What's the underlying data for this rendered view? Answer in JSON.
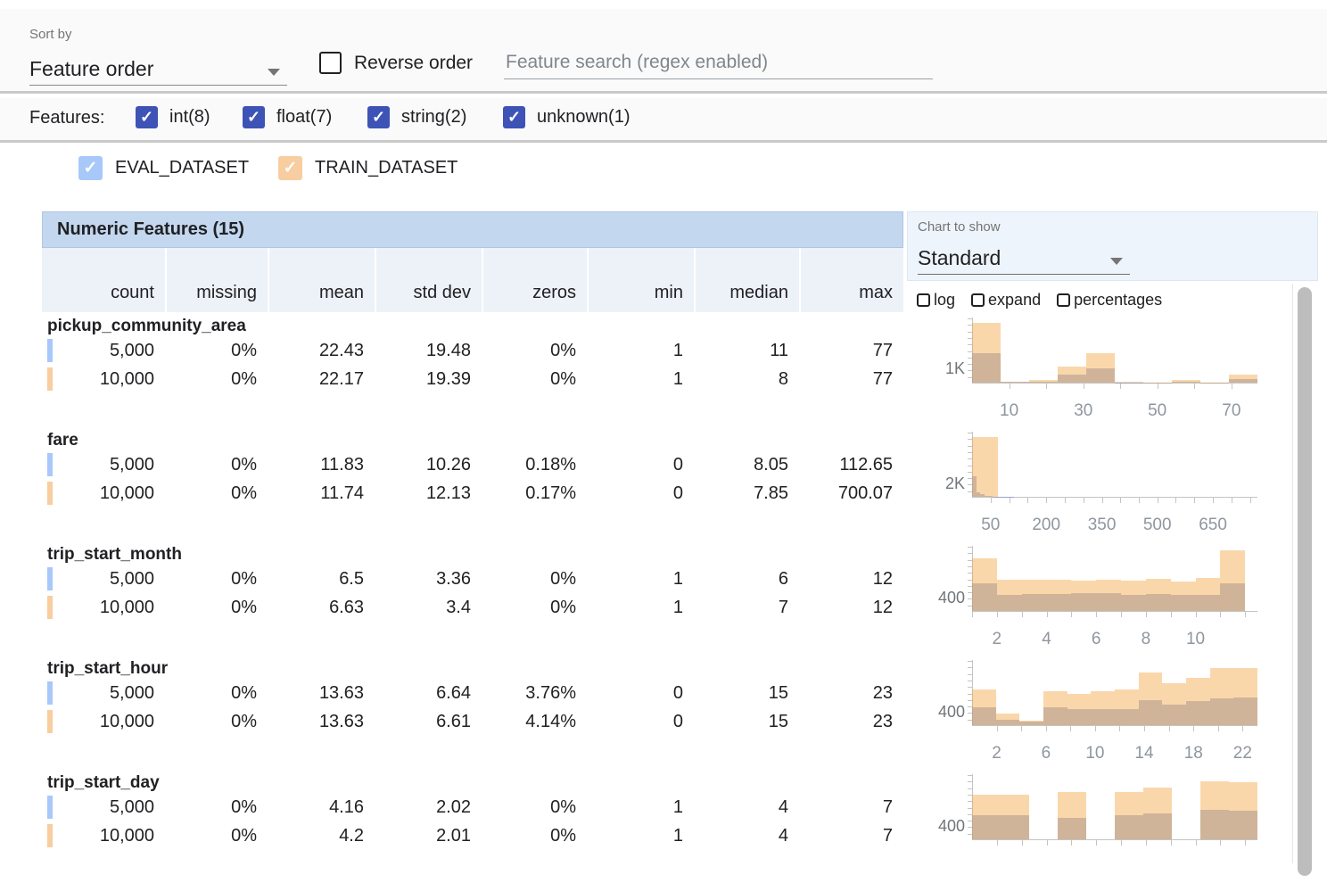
{
  "toolbar": {
    "sort_by_label": "Sort by",
    "sort_value": "Feature order",
    "reverse_label": "Reverse order",
    "search_placeholder": "Feature search (regex enabled)"
  },
  "filters": {
    "label": "Features:",
    "checkbox_color": "#3D53B6",
    "types": [
      {
        "label": "int(8)",
        "checked": true
      },
      {
        "label": "float(7)",
        "checked": true
      },
      {
        "label": "string(2)",
        "checked": true
      },
      {
        "label": "unknown(1)",
        "checked": true
      }
    ]
  },
  "datasets": [
    {
      "name": "EVAL_DATASET",
      "color": "#A9C8FA",
      "checked": true
    },
    {
      "name": "TRAIN_DATASET",
      "color": "#F8CDA0",
      "checked": true
    }
  ],
  "table": {
    "title": "Numeric Features (15)",
    "columns": [
      "count",
      "missing",
      "mean",
      "std dev",
      "zeros",
      "min",
      "median",
      "max"
    ]
  },
  "chart_controls": {
    "label": "Chart to show",
    "selected": "Standard",
    "checkboxes": [
      {
        "label": "log",
        "checked": false
      },
      {
        "label": "expand",
        "checked": false
      },
      {
        "label": "percentages",
        "checked": false
      }
    ]
  },
  "colors": {
    "train_bar": "rgba(243,166,68,0.45)",
    "eval_bar": "rgba(113,139,196,0.55)",
    "header_bg": "#C3D7EF",
    "subheader_bg": "#EDF1F8",
    "panel_bg": "#EEF4FB"
  },
  "features": [
    {
      "name": "pickup_community_area",
      "rows": [
        {
          "dataset": "EVAL_DATASET",
          "values": [
            "5,000",
            "0%",
            "22.43",
            "19.48",
            "0%",
            "1",
            "11",
            "77"
          ]
        },
        {
          "dataset": "TRAIN_DATASET",
          "values": [
            "10,000",
            "0%",
            "22.17",
            "19.39",
            "0%",
            "1",
            "8",
            "77"
          ]
        }
      ]
    },
    {
      "name": "fare",
      "rows": [
        {
          "dataset": "EVAL_DATASET",
          "values": [
            "5,000",
            "0%",
            "11.83",
            "10.26",
            "0.18%",
            "0",
            "8.05",
            "112.65"
          ]
        },
        {
          "dataset": "TRAIN_DATASET",
          "values": [
            "10,000",
            "0%",
            "11.74",
            "12.13",
            "0.17%",
            "0",
            "7.85",
            "700.07"
          ]
        }
      ]
    },
    {
      "name": "trip_start_month",
      "rows": [
        {
          "dataset": "EVAL_DATASET",
          "values": [
            "5,000",
            "0%",
            "6.5",
            "3.36",
            "0%",
            "1",
            "6",
            "12"
          ]
        },
        {
          "dataset": "TRAIN_DATASET",
          "values": [
            "10,000",
            "0%",
            "6.63",
            "3.4",
            "0%",
            "1",
            "7",
            "12"
          ]
        }
      ]
    },
    {
      "name": "trip_start_hour",
      "rows": [
        {
          "dataset": "EVAL_DATASET",
          "values": [
            "5,000",
            "0%",
            "13.63",
            "6.64",
            "3.76%",
            "0",
            "15",
            "23"
          ]
        },
        {
          "dataset": "TRAIN_DATASET",
          "values": [
            "10,000",
            "0%",
            "13.63",
            "6.61",
            "4.14%",
            "0",
            "15",
            "23"
          ]
        }
      ]
    },
    {
      "name": "trip_start_day",
      "rows": [
        {
          "dataset": "EVAL_DATASET",
          "values": [
            "5,000",
            "0%",
            "4.16",
            "2.02",
            "0%",
            "1",
            "4",
            "7"
          ]
        },
        {
          "dataset": "TRAIN_DATASET",
          "values": [
            "10,000",
            "0%",
            "4.2",
            "2.01",
            "0%",
            "1",
            "4",
            "7"
          ]
        }
      ]
    }
  ],
  "chart_data": [
    {
      "feature": "pickup_community_area",
      "type": "histogram",
      "y_label": "1K",
      "y_label_value": 1000,
      "y_max": 4300,
      "x_range": [
        0,
        77
      ],
      "x_ticks": [
        {
          "f": 0.13,
          "label": "10"
        },
        {
          "f": 0.26,
          "label": ""
        },
        {
          "f": 0.39,
          "label": "30"
        },
        {
          "f": 0.519,
          "label": ""
        },
        {
          "f": 0.649,
          "label": "50"
        },
        {
          "f": 0.779,
          "label": ""
        },
        {
          "f": 0.909,
          "label": "70"
        }
      ],
      "train_bins": [
        {
          "f0": 0.0,
          "w": 0.1,
          "count": 3900
        },
        {
          "f0": 0.1,
          "w": 0.1,
          "count": 60
        },
        {
          "f0": 0.2,
          "w": 0.1,
          "count": 150
        },
        {
          "f0": 0.3,
          "w": 0.1,
          "count": 1030
        },
        {
          "f0": 0.4,
          "w": 0.1,
          "count": 1890
        },
        {
          "f0": 0.5,
          "w": 0.1,
          "count": 40
        },
        {
          "f0": 0.6,
          "w": 0.1,
          "count": 20
        },
        {
          "f0": 0.7,
          "w": 0.1,
          "count": 150
        },
        {
          "f0": 0.8,
          "w": 0.1,
          "count": 20
        },
        {
          "f0": 0.9,
          "w": 0.1,
          "count": 540
        }
      ],
      "eval_bins": [
        {
          "f0": 0.0,
          "w": 0.1,
          "count": 1890
        },
        {
          "f0": 0.1,
          "w": 0.1,
          "count": 30
        },
        {
          "f0": 0.2,
          "w": 0.1,
          "count": 80
        },
        {
          "f0": 0.3,
          "w": 0.1,
          "count": 520
        },
        {
          "f0": 0.4,
          "w": 0.1,
          "count": 950
        },
        {
          "f0": 0.5,
          "w": 0.1,
          "count": 20
        },
        {
          "f0": 0.6,
          "w": 0.1,
          "count": 10
        },
        {
          "f0": 0.7,
          "w": 0.1,
          "count": 50
        },
        {
          "f0": 0.8,
          "w": 0.1,
          "count": 10
        },
        {
          "f0": 0.9,
          "w": 0.1,
          "count": 240
        }
      ]
    },
    {
      "feature": "fare",
      "type": "histogram",
      "y_label": "2K",
      "y_label_value": 2000,
      "y_max": 9100,
      "x_range": [
        0,
        770
      ],
      "x_ticks": [
        {
          "f": 0.065,
          "label": "50"
        },
        {
          "f": 0.13,
          "label": ""
        },
        {
          "f": 0.195,
          "label": ""
        },
        {
          "f": 0.26,
          "label": "200"
        },
        {
          "f": 0.325,
          "label": ""
        },
        {
          "f": 0.39,
          "label": ""
        },
        {
          "f": 0.455,
          "label": "350"
        },
        {
          "f": 0.519,
          "label": ""
        },
        {
          "f": 0.584,
          "label": ""
        },
        {
          "f": 0.649,
          "label": "500"
        },
        {
          "f": 0.714,
          "label": ""
        },
        {
          "f": 0.779,
          "label": ""
        },
        {
          "f": 0.844,
          "label": "650"
        },
        {
          "f": 0.909,
          "label": ""
        },
        {
          "f": 0.974,
          "label": ""
        }
      ],
      "train_bins": [
        {
          "f0": 0.0,
          "w": 0.0909,
          "count": 8200
        }
      ],
      "eval_bins": [
        {
          "f0": 0.0,
          "w": 0.01464,
          "count": 2850
        },
        {
          "f0": 0.01464,
          "w": 0.01464,
          "count": 640
        },
        {
          "f0": 0.02928,
          "w": 0.01464,
          "count": 320
        },
        {
          "f0": 0.04392,
          "w": 0.01464,
          "count": 180
        },
        {
          "f0": 0.05856,
          "w": 0.01464,
          "count": 90
        },
        {
          "f0": 0.0732,
          "w": 0.01464,
          "count": 50
        },
        {
          "f0": 0.08784,
          "w": 0.01464,
          "count": 30
        },
        {
          "f0": 0.10248,
          "w": 0.01464,
          "count": 20
        },
        {
          "f0": 0.11712,
          "w": 0.01464,
          "count": 10
        },
        {
          "f0": 0.13176,
          "w": 0.01464,
          "count": 10
        }
      ]
    },
    {
      "feature": "trip_start_month",
      "type": "histogram",
      "y_label": "400",
      "y_label_value": 400,
      "y_max": 1800,
      "x_range": [
        1,
        12
      ],
      "x_ticks": [
        {
          "f": 0.0,
          "label": ""
        },
        {
          "f": 0.087,
          "label": "2"
        },
        {
          "f": 0.174,
          "label": ""
        },
        {
          "f": 0.261,
          "label": "4"
        },
        {
          "f": 0.348,
          "label": ""
        },
        {
          "f": 0.435,
          "label": "6"
        },
        {
          "f": 0.522,
          "label": ""
        },
        {
          "f": 0.609,
          "label": "8"
        },
        {
          "f": 0.696,
          "label": ""
        },
        {
          "f": 0.783,
          "label": "10"
        },
        {
          "f": 0.87,
          "label": ""
        },
        {
          "f": 0.957,
          "label": ""
        }
      ],
      "train_bins": [
        {
          "f0": 0.0,
          "w": 0.087,
          "count": 1440
        },
        {
          "f0": 0.087,
          "w": 0.087,
          "count": 846
        },
        {
          "f0": 0.174,
          "w": 0.087,
          "count": 855
        },
        {
          "f0": 0.261,
          "w": 0.087,
          "count": 846
        },
        {
          "f0": 0.348,
          "w": 0.087,
          "count": 837
        },
        {
          "f0": 0.435,
          "w": 0.087,
          "count": 846
        },
        {
          "f0": 0.522,
          "w": 0.087,
          "count": 828
        },
        {
          "f0": 0.609,
          "w": 0.087,
          "count": 882
        },
        {
          "f0": 0.696,
          "w": 0.087,
          "count": 792
        },
        {
          "f0": 0.783,
          "w": 0.087,
          "count": 900
        },
        {
          "f0": 0.87,
          "w": 0.087,
          "count": 1656
        }
      ],
      "eval_bins": [
        {
          "f0": 0.0,
          "w": 0.087,
          "count": 756
        },
        {
          "f0": 0.087,
          "w": 0.087,
          "count": 450
        },
        {
          "f0": 0.174,
          "w": 0.087,
          "count": 455
        },
        {
          "f0": 0.261,
          "w": 0.087,
          "count": 460
        },
        {
          "f0": 0.348,
          "w": 0.087,
          "count": 480
        },
        {
          "f0": 0.435,
          "w": 0.087,
          "count": 485
        },
        {
          "f0": 0.522,
          "w": 0.087,
          "count": 450
        },
        {
          "f0": 0.609,
          "w": 0.087,
          "count": 460
        },
        {
          "f0": 0.696,
          "w": 0.087,
          "count": 440
        },
        {
          "f0": 0.783,
          "w": 0.087,
          "count": 450
        },
        {
          "f0": 0.87,
          "w": 0.087,
          "count": 756
        }
      ]
    },
    {
      "feature": "trip_start_hour",
      "type": "histogram",
      "y_label": "400",
      "y_label_value": 400,
      "y_max": 1800,
      "x_range": [
        0,
        23
      ],
      "x_ticks": [
        {
          "f": 0.086,
          "label": "2"
        },
        {
          "f": 0.172,
          "label": ""
        },
        {
          "f": 0.259,
          "label": "6"
        },
        {
          "f": 0.345,
          "label": ""
        },
        {
          "f": 0.431,
          "label": "10"
        },
        {
          "f": 0.517,
          "label": ""
        },
        {
          "f": 0.603,
          "label": "14"
        },
        {
          "f": 0.69,
          "label": ""
        },
        {
          "f": 0.776,
          "label": "18"
        },
        {
          "f": 0.862,
          "label": ""
        },
        {
          "f": 0.948,
          "label": "22"
        }
      ],
      "train_bins": [
        {
          "f0": 0.0,
          "w": 0.0833,
          "count": 972
        },
        {
          "f0": 0.0833,
          "w": 0.0833,
          "count": 324
        },
        {
          "f0": 0.1666,
          "w": 0.0833,
          "count": 126
        },
        {
          "f0": 0.2499,
          "w": 0.0833,
          "count": 936
        },
        {
          "f0": 0.3332,
          "w": 0.0833,
          "count": 846
        },
        {
          "f0": 0.4165,
          "w": 0.0833,
          "count": 936
        },
        {
          "f0": 0.4998,
          "w": 0.0833,
          "count": 972
        },
        {
          "f0": 0.5831,
          "w": 0.0833,
          "count": 1440
        },
        {
          "f0": 0.6664,
          "w": 0.0833,
          "count": 1152
        },
        {
          "f0": 0.7497,
          "w": 0.0833,
          "count": 1278
        },
        {
          "f0": 0.833,
          "w": 0.0833,
          "count": 1548
        },
        {
          "f0": 0.9163,
          "w": 0.0837,
          "count": 1548
        }
      ],
      "eval_bins": [
        {
          "f0": 0.0,
          "w": 0.0833,
          "count": 486
        },
        {
          "f0": 0.0833,
          "w": 0.0833,
          "count": 144
        },
        {
          "f0": 0.1666,
          "w": 0.0833,
          "count": 90
        },
        {
          "f0": 0.2499,
          "w": 0.0833,
          "count": 486
        },
        {
          "f0": 0.3332,
          "w": 0.0833,
          "count": 432
        },
        {
          "f0": 0.4165,
          "w": 0.0833,
          "count": 450
        },
        {
          "f0": 0.4998,
          "w": 0.0833,
          "count": 450
        },
        {
          "f0": 0.5831,
          "w": 0.0833,
          "count": 684
        },
        {
          "f0": 0.6664,
          "w": 0.0833,
          "count": 558
        },
        {
          "f0": 0.7497,
          "w": 0.0833,
          "count": 648
        },
        {
          "f0": 0.833,
          "w": 0.0833,
          "count": 720
        },
        {
          "f0": 0.9163,
          "w": 0.0837,
          "count": 756
        }
      ]
    },
    {
      "feature": "trip_start_day",
      "type": "histogram",
      "y_label": "400",
      "y_label_value": 400,
      "y_max": 1800,
      "x_range": [
        1,
        7
      ],
      "x_ticks": [
        {
          "f": 0.087,
          "label": ""
        },
        {
          "f": 0.174,
          "label": ""
        },
        {
          "f": 0.261,
          "label": ""
        },
        {
          "f": 0.348,
          "label": ""
        },
        {
          "f": 0.435,
          "label": ""
        },
        {
          "f": 0.522,
          "label": ""
        },
        {
          "f": 0.609,
          "label": ""
        },
        {
          "f": 0.696,
          "label": ""
        },
        {
          "f": 0.783,
          "label": ""
        },
        {
          "f": 0.87,
          "label": ""
        },
        {
          "f": 0.957,
          "label": ""
        }
      ],
      "train_bins": [
        {
          "f0": 0.0,
          "w": 0.1,
          "count": 1224
        },
        {
          "f0": 0.1,
          "w": 0.1,
          "count": 1224
        },
        {
          "f0": 0.2,
          "w": 0.1,
          "count": 0
        },
        {
          "f0": 0.3,
          "w": 0.1,
          "count": 1278
        },
        {
          "f0": 0.4,
          "w": 0.1,
          "count": 0
        },
        {
          "f0": 0.5,
          "w": 0.1,
          "count": 1296
        },
        {
          "f0": 0.6,
          "w": 0.1,
          "count": 1404
        },
        {
          "f0": 0.7,
          "w": 0.1,
          "count": 0
        },
        {
          "f0": 0.8,
          "w": 0.1,
          "count": 1584
        },
        {
          "f0": 0.9,
          "w": 0.1,
          "count": 1566
        }
      ],
      "eval_bins": [
        {
          "f0": 0.0,
          "w": 0.1,
          "count": 666
        },
        {
          "f0": 0.1,
          "w": 0.1,
          "count": 648
        },
        {
          "f0": 0.2,
          "w": 0.1,
          "count": 0
        },
        {
          "f0": 0.3,
          "w": 0.1,
          "count": 594
        },
        {
          "f0": 0.4,
          "w": 0.1,
          "count": 0
        },
        {
          "f0": 0.5,
          "w": 0.1,
          "count": 666
        },
        {
          "f0": 0.6,
          "w": 0.1,
          "count": 702
        },
        {
          "f0": 0.7,
          "w": 0.1,
          "count": 0
        },
        {
          "f0": 0.8,
          "w": 0.1,
          "count": 792
        },
        {
          "f0": 0.9,
          "w": 0.1,
          "count": 774
        }
      ]
    }
  ]
}
